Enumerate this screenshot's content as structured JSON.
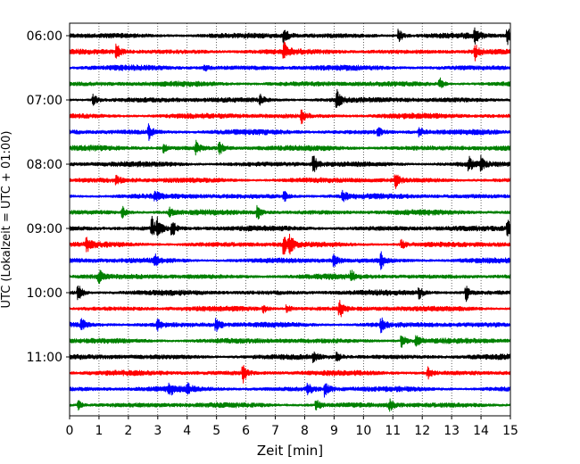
{
  "chart_data": {
    "type": "line",
    "title": "",
    "xlabel": "Zeit  [min]",
    "ylabel": "UTC (Lokalzeit = UTC + 01:00)",
    "xlim": [
      0,
      15
    ],
    "x_ticks": [
      0,
      1,
      2,
      3,
      4,
      5,
      6,
      7,
      8,
      9,
      10,
      11,
      12,
      13,
      14,
      15
    ],
    "x_tick_labels": [
      "0",
      "1",
      "2",
      "3",
      "4",
      "5",
      "6",
      "7",
      "8",
      "9",
      "10",
      "11",
      "12",
      "13",
      "14",
      "15"
    ],
    "y_tick_labels": [
      "06:00",
      "07:00",
      "08:00",
      "09:00",
      "10:00",
      "11:00"
    ],
    "x_grid": "dotted vertical lines at each minute",
    "legend": "none",
    "color_cycle": [
      "#000000",
      "#ff0000",
      "#0000ff",
      "#008000"
    ],
    "trace_minutes": 15,
    "series": [
      {
        "start_utc": "06:00",
        "color": "#000000",
        "events": [
          [
            7.3,
            0.9
          ],
          [
            11.2,
            0.7
          ],
          [
            13.8,
            0.6
          ],
          [
            14.9,
            0.8
          ]
        ]
      },
      {
        "start_utc": "06:15",
        "color": "#ff0000",
        "events": [
          [
            1.6,
            0.7
          ],
          [
            7.3,
            0.8
          ],
          [
            13.8,
            0.7
          ]
        ]
      },
      {
        "start_utc": "06:30",
        "color": "#0000ff",
        "events": [
          [
            4.6,
            0.3
          ]
        ]
      },
      {
        "start_utc": "06:45",
        "color": "#008000",
        "events": [
          [
            12.6,
            0.5
          ]
        ]
      },
      {
        "start_utc": "07:00",
        "color": "#000000",
        "events": [
          [
            0.8,
            0.6
          ],
          [
            9.1,
            1.0
          ],
          [
            6.5,
            0.4
          ]
        ]
      },
      {
        "start_utc": "07:15",
        "color": "#ff0000",
        "events": [
          [
            7.9,
            0.6
          ]
        ]
      },
      {
        "start_utc": "07:30",
        "color": "#0000ff",
        "events": [
          [
            2.7,
            0.7
          ],
          [
            10.5,
            0.4
          ],
          [
            11.9,
            0.5
          ]
        ]
      },
      {
        "start_utc": "07:45",
        "color": "#008000",
        "events": [
          [
            3.2,
            0.4
          ],
          [
            4.3,
            0.6
          ],
          [
            5.1,
            0.6
          ]
        ]
      },
      {
        "start_utc": "08:00",
        "color": "#000000",
        "events": [
          [
            8.3,
            0.8
          ],
          [
            13.6,
            0.6
          ],
          [
            14.0,
            0.6
          ]
        ]
      },
      {
        "start_utc": "08:15",
        "color": "#ff0000",
        "events": [
          [
            1.6,
            0.4
          ],
          [
            11.1,
            0.6
          ]
        ]
      },
      {
        "start_utc": "08:30",
        "color": "#0000ff",
        "events": [
          [
            2.9,
            0.5
          ],
          [
            7.3,
            0.5
          ],
          [
            9.3,
            0.6
          ]
        ]
      },
      {
        "start_utc": "08:45",
        "color": "#008000",
        "events": [
          [
            1.8,
            0.5
          ],
          [
            3.4,
            0.4
          ],
          [
            6.4,
            0.7
          ]
        ]
      },
      {
        "start_utc": "09:00",
        "color": "#000000",
        "events": [
          [
            2.8,
            1.0
          ],
          [
            3.0,
            0.8
          ],
          [
            3.5,
            0.7
          ],
          [
            14.9,
            0.8
          ]
        ]
      },
      {
        "start_utc": "09:15",
        "color": "#ff0000",
        "events": [
          [
            0.6,
            0.6
          ],
          [
            7.3,
            1.0
          ],
          [
            7.5,
            0.8
          ],
          [
            11.3,
            0.4
          ]
        ]
      },
      {
        "start_utc": "09:30",
        "color": "#0000ff",
        "events": [
          [
            2.9,
            0.5
          ],
          [
            9.0,
            0.6
          ],
          [
            10.6,
            0.7
          ]
        ]
      },
      {
        "start_utc": "09:45",
        "color": "#008000",
        "events": [
          [
            1.0,
            0.6
          ],
          [
            9.6,
            0.5
          ]
        ]
      },
      {
        "start_utc": "10:00",
        "color": "#000000",
        "events": [
          [
            0.3,
            0.8
          ],
          [
            11.9,
            0.5
          ],
          [
            13.5,
            0.7
          ]
        ]
      },
      {
        "start_utc": "10:15",
        "color": "#ff0000",
        "events": [
          [
            6.6,
            0.4
          ],
          [
            7.4,
            0.4
          ],
          [
            9.2,
            0.8
          ]
        ]
      },
      {
        "start_utc": "10:30",
        "color": "#0000ff",
        "events": [
          [
            0.4,
            0.5
          ],
          [
            3.0,
            0.5
          ],
          [
            5.0,
            0.6
          ],
          [
            10.6,
            0.6
          ]
        ]
      },
      {
        "start_utc": "10:45",
        "color": "#008000",
        "events": [
          [
            11.3,
            0.7
          ],
          [
            11.8,
            0.5
          ]
        ]
      },
      {
        "start_utc": "11:00",
        "color": "#000000",
        "events": [
          [
            8.3,
            0.4
          ],
          [
            9.1,
            0.4
          ]
        ]
      },
      {
        "start_utc": "11:15",
        "color": "#ff0000",
        "events": [
          [
            5.9,
            0.9
          ],
          [
            12.2,
            0.5
          ]
        ]
      },
      {
        "start_utc": "11:30",
        "color": "#0000ff",
        "events": [
          [
            3.4,
            0.6
          ],
          [
            4.0,
            0.5
          ],
          [
            8.1,
            0.7
          ],
          [
            8.7,
            0.8
          ]
        ]
      },
      {
        "start_utc": "11:45",
        "color": "#008000",
        "events": [
          [
            0.3,
            0.4
          ],
          [
            8.4,
            0.5
          ],
          [
            10.9,
            0.5
          ]
        ]
      }
    ]
  }
}
